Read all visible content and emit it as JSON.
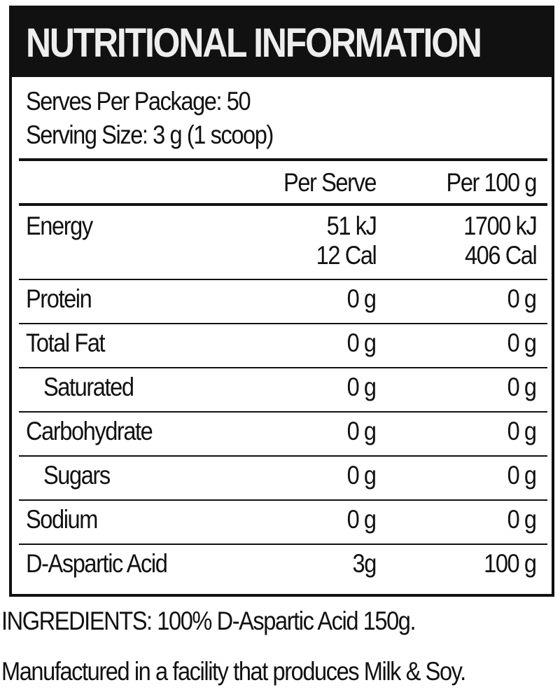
{
  "title": "NUTRITIONAL INFORMATION",
  "serves_per_package": "Serves Per Package: 50",
  "serving_size": "Serving Size: 3 g (1 scoop)",
  "columns": [
    "Per Serve",
    "Per 100 g"
  ],
  "rows": [
    {
      "name": "Energy",
      "per_serve": [
        "51 kJ",
        "12 Cal"
      ],
      "per_100g": [
        "1700 kJ",
        "406 Cal"
      ]
    },
    {
      "name": "Protein",
      "per_serve": "0 g",
      "per_100g": "0 g"
    },
    {
      "name": "Total Fat",
      "per_serve": "0 g",
      "per_100g": "0 g"
    },
    {
      "name": "Saturated",
      "per_serve": "0 g",
      "per_100g": "0 g",
      "indent": true
    },
    {
      "name": "Carbohydrate",
      "per_serve": "0 g",
      "per_100g": "0 g"
    },
    {
      "name": "Sugars",
      "per_serve": "0 g",
      "per_100g": "0 g",
      "indent": true
    },
    {
      "name": "Sodium",
      "per_serve": "0 g",
      "per_100g": "0 g"
    },
    {
      "name": "D-Aspartic Acid",
      "per_serve": "3g",
      "per_100g": "100 g"
    }
  ],
  "ingredients": "INGREDIENTS: 100% D-Aspartic Acid 150g.",
  "allergen": "Manufactured in a facility that produces Milk & Soy."
}
